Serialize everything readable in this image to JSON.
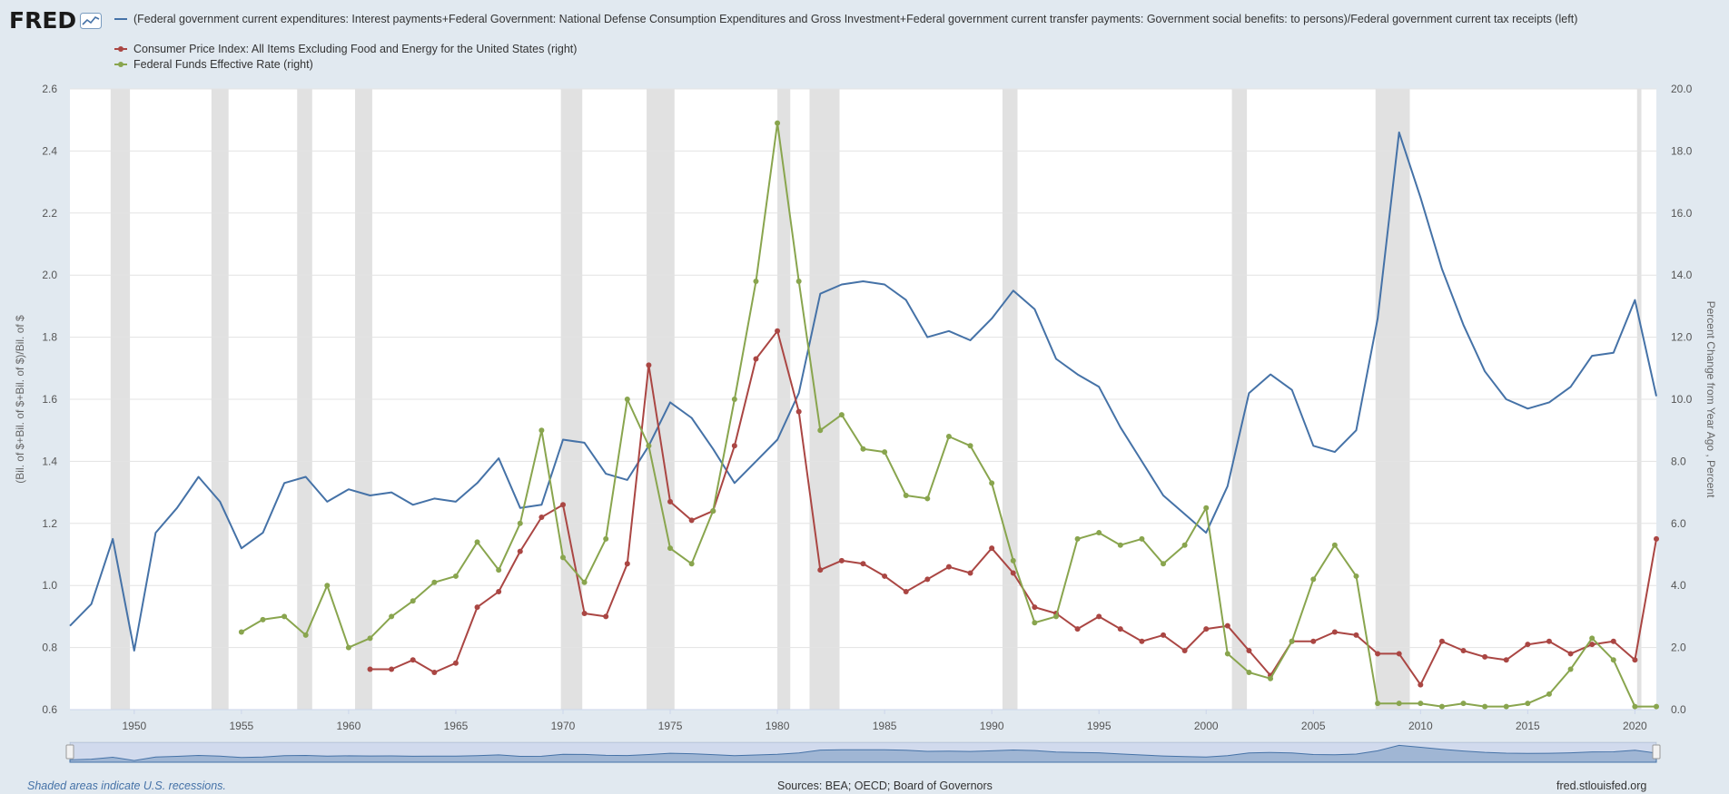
{
  "header": {
    "logo_text": "FRED",
    "legend": [
      {
        "label": "(Federal government current expenditures: Interest payments+Federal Government: National Defense Consumption Expenditures and Gross Investment+Federal government current transfer payments: Government social benefits: to persons)/Federal government current tax receipts (left)",
        "color": "#4572a7",
        "marker": false
      },
      {
        "label": "Consumer Price Index: All Items Excluding Food and Energy for the United States (right)",
        "color": "#aa4643",
        "marker": true
      },
      {
        "label": "Federal Funds Effective Rate (right)",
        "color": "#89a54e",
        "marker": true
      }
    ]
  },
  "footer": {
    "note": "Shaded areas indicate U.S. recessions.",
    "sources": "Sources: BEA; OECD; Board of Governors",
    "site": "fred.stlouisfed.org"
  },
  "chart_data": {
    "type": "line",
    "x_range": [
      1947,
      2021
    ],
    "x_ticks": [
      "1950",
      "1955",
      "1960",
      "1965",
      "1970",
      "1975",
      "1980",
      "1985",
      "1990",
      "1995",
      "2000",
      "2005",
      "2010",
      "2015",
      "2020"
    ],
    "y_left": {
      "label": "(Bil. of $+Bil. of $+Bil. of $)/Bil. of $",
      "range": [
        0.6,
        2.6
      ],
      "ticks": [
        "0.6",
        "0.8",
        "1.0",
        "1.2",
        "1.4",
        "1.6",
        "1.8",
        "2.0",
        "2.2",
        "2.4",
        "2.6"
      ]
    },
    "y_right": {
      "label": "Percent Change from Year Ago , Percent",
      "range": [
        0,
        20
      ],
      "ticks": [
        "0.0",
        "2.0",
        "4.0",
        "6.0",
        "8.0",
        "10.0",
        "12.0",
        "14.0",
        "16.0",
        "18.0",
        "20.0"
      ]
    },
    "grid": true,
    "recessions": [
      [
        1948.9,
        1949.8
      ],
      [
        1953.6,
        1954.4
      ],
      [
        1957.6,
        1958.3
      ],
      [
        1960.3,
        1961.1
      ],
      [
        1969.9,
        1970.9
      ],
      [
        1973.9,
        1975.2
      ],
      [
        1980.0,
        1980.6
      ],
      [
        1981.5,
        1982.9
      ],
      [
        1990.5,
        1991.2
      ],
      [
        2001.2,
        2001.9
      ],
      [
        2007.9,
        2009.5
      ],
      [
        2020.1,
        2020.3
      ]
    ],
    "series": [
      {
        "name": "(Federal government current expenditures: Interest payments+Federal Government: National Defense Consumption Expenditures and Gross Investment+Federal government current transfer payments: Government social benefits: to persons)/Federal government current tax receipts (left)",
        "axis": "left",
        "color": "#4572a7",
        "marker": false,
        "x": [
          1947,
          1948,
          1949,
          1950,
          1951,
          1952,
          1953,
          1954,
          1955,
          1956,
          1957,
          1958,
          1959,
          1960,
          1961,
          1962,
          1963,
          1964,
          1965,
          1966,
          1967,
          1968,
          1969,
          1970,
          1971,
          1972,
          1973,
          1974,
          1975,
          1976,
          1977,
          1978,
          1979,
          1980,
          1981,
          1982,
          1983,
          1984,
          1985,
          1986,
          1987,
          1988,
          1989,
          1990,
          1991,
          1992,
          1993,
          1994,
          1995,
          1996,
          1997,
          1998,
          1999,
          2000,
          2001,
          2002,
          2003,
          2004,
          2005,
          2006,
          2007,
          2008,
          2009,
          2010,
          2011,
          2012,
          2013,
          2014,
          2015,
          2016,
          2017,
          2018,
          2019,
          2020,
          2021
        ],
        "y": [
          0.87,
          0.94,
          1.15,
          0.79,
          1.17,
          1.25,
          1.35,
          1.27,
          1.12,
          1.17,
          1.33,
          1.35,
          1.27,
          1.31,
          1.29,
          1.3,
          1.26,
          1.28,
          1.27,
          1.33,
          1.41,
          1.25,
          1.26,
          1.47,
          1.46,
          1.36,
          1.34,
          1.45,
          1.59,
          1.54,
          1.44,
          1.33,
          1.4,
          1.47,
          1.62,
          1.94,
          1.97,
          1.98,
          1.97,
          1.92,
          1.8,
          1.82,
          1.79,
          1.86,
          1.95,
          1.89,
          1.73,
          1.68,
          1.64,
          1.51,
          1.4,
          1.29,
          1.23,
          1.17,
          1.32,
          1.62,
          1.68,
          1.63,
          1.45,
          1.43,
          1.5,
          1.86,
          2.46,
          2.25,
          2.02,
          1.84,
          1.69,
          1.6,
          1.57,
          1.59,
          1.64,
          1.74,
          1.75,
          1.92,
          1.61
        ]
      },
      {
        "name": "Consumer Price Index: All Items Excluding Food and Energy for the United States (right)",
        "axis": "right",
        "color": "#aa4643",
        "marker": true,
        "x": [
          1961,
          1962,
          1963,
          1964,
          1965,
          1966,
          1967,
          1968,
          1969,
          1970,
          1971,
          1972,
          1973,
          1974,
          1975,
          1976,
          1977,
          1978,
          1979,
          1980,
          1981,
          1982,
          1983,
          1984,
          1985,
          1986,
          1987,
          1988,
          1989,
          1990,
          1991,
          1992,
          1993,
          1994,
          1995,
          1996,
          1997,
          1998,
          1999,
          2000,
          2001,
          2002,
          2003,
          2004,
          2005,
          2006,
          2007,
          2008,
          2009,
          2010,
          2011,
          2012,
          2013,
          2014,
          2015,
          2016,
          2017,
          2018,
          2019,
          2020,
          2021
        ],
        "y": [
          1.3,
          1.3,
          1.6,
          1.2,
          1.5,
          3.3,
          3.8,
          5.1,
          6.2,
          6.6,
          3.1,
          3.0,
          4.7,
          11.1,
          6.7,
          6.1,
          6.4,
          8.5,
          11.3,
          12.2,
          9.6,
          4.5,
          4.8,
          4.7,
          4.3,
          3.8,
          4.2,
          4.6,
          4.4,
          5.2,
          4.4,
          3.3,
          3.1,
          2.6,
          3.0,
          2.6,
          2.2,
          2.4,
          1.9,
          2.6,
          2.7,
          1.9,
          1.1,
          2.2,
          2.2,
          2.5,
          2.4,
          1.8,
          1.8,
          0.8,
          2.2,
          1.9,
          1.7,
          1.6,
          2.1,
          2.2,
          1.8,
          2.1,
          2.2,
          1.6,
          5.5
        ]
      },
      {
        "name": "Federal Funds Effective Rate (right)",
        "axis": "right",
        "color": "#89a54e",
        "marker": true,
        "x": [
          1955,
          1956,
          1957,
          1958,
          1959,
          1960,
          1961,
          1962,
          1963,
          1964,
          1965,
          1966,
          1967,
          1968,
          1969,
          1970,
          1971,
          1972,
          1973,
          1974,
          1975,
          1976,
          1977,
          1978,
          1979,
          1980,
          1981,
          1982,
          1983,
          1984,
          1985,
          1986,
          1987,
          1988,
          1989,
          1990,
          1991,
          1992,
          1993,
          1994,
          1995,
          1996,
          1997,
          1998,
          1999,
          2000,
          2001,
          2002,
          2003,
          2004,
          2005,
          2006,
          2007,
          2008,
          2009,
          2010,
          2011,
          2012,
          2013,
          2014,
          2015,
          2016,
          2017,
          2018,
          2019,
          2020,
          2021
        ],
        "y": [
          2.5,
          2.9,
          3.0,
          2.4,
          4.0,
          2.0,
          2.3,
          3.0,
          3.5,
          4.1,
          4.3,
          5.4,
          4.5,
          6.0,
          9.0,
          4.9,
          4.1,
          5.5,
          10.0,
          8.5,
          5.2,
          4.7,
          6.4,
          10.0,
          13.8,
          18.9,
          13.8,
          9.0,
          9.5,
          8.4,
          8.3,
          6.9,
          6.8,
          8.8,
          8.5,
          7.3,
          4.8,
          2.8,
          3.0,
          5.5,
          5.7,
          5.3,
          5.5,
          4.7,
          5.3,
          6.5,
          1.8,
          1.2,
          1.0,
          2.2,
          4.2,
          5.3,
          4.3,
          0.2,
          0.2,
          0.2,
          0.1,
          0.2,
          0.1,
          0.1,
          0.2,
          0.5,
          1.3,
          2.3,
          1.6,
          0.1,
          0.1
        ]
      }
    ]
  }
}
